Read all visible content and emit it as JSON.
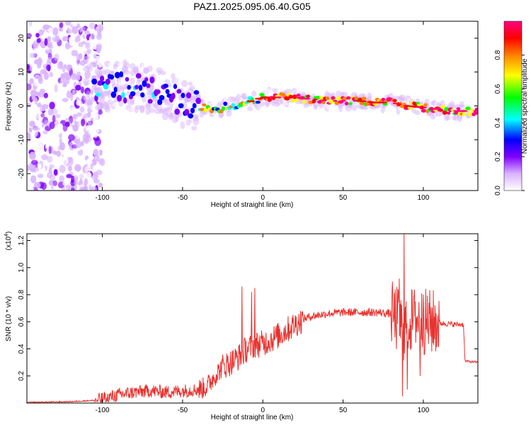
{
  "figure": {
    "title": "PAZ1.2025.095.06.40.G05"
  },
  "chart_data": [
    {
      "type": "heatmap",
      "xlabel": "Height of straight line (km)",
      "ylabel": "Frequency (Hz)",
      "xlim": [
        -147,
        134
      ],
      "ylim": [
        -25,
        25
      ],
      "x_ticks": [
        "-100",
        "-50",
        "0",
        "50",
        "100"
      ],
      "y_ticks": [
        "-20",
        "-10",
        "0",
        "10",
        "20"
      ],
      "colorbar": {
        "label": "Normalized spectral amplitude",
        "range": [
          0,
          1
        ],
        "ticks": [
          "0.0",
          "0.2",
          "0.4",
          "0.6",
          "0.8"
        ],
        "colors": [
          "#ffffff",
          "#d9b3ff",
          "#8000ff",
          "#0000ff",
          "#00ffff",
          "#00ff00",
          "#ffff00",
          "#ff8000",
          "#ff0000",
          "#ff0080"
        ]
      },
      "ridge": {
        "x": [
          -100,
          -90,
          -80,
          -70,
          -60,
          -50,
          -40,
          -30,
          -20,
          -10,
          0,
          10,
          20,
          30,
          40,
          50,
          60,
          70,
          80,
          90,
          100,
          110,
          120,
          134
        ],
        "y": [
          6,
          6,
          5,
          5,
          3,
          1,
          0,
          -1,
          0,
          1,
          2.5,
          2.5,
          2.5,
          2,
          1.5,
          1.5,
          1.5,
          1,
          1,
          0,
          -0.5,
          -1,
          -1.5,
          -1.5
        ]
      },
      "scatter_region": {
        "x_range": [
          -147,
          -100
        ],
        "y_range": [
          -25,
          25
        ]
      }
    },
    {
      "type": "line",
      "xlabel": "Height of straight line (km)",
      "ylabel": "SNR (10 * v/v)",
      "multiplier": "(x10",
      "multiplier_exp": "4",
      "multiplier_close": ")",
      "xlim": [
        -147,
        134
      ],
      "ylim": [
        0,
        1.25
      ],
      "x_ticks": [
        "-100",
        "-50",
        "0",
        "50",
        "100"
      ],
      "y_ticks": [
        "0.2",
        "0.4",
        "0.6",
        "0.8",
        "1.0",
        "1.2"
      ],
      "color": "#e8322e",
      "series": [
        {
          "x": [
            -147,
            -120,
            -105,
            -100,
            -90,
            -80,
            -70,
            -60,
            -50,
            -40,
            -35,
            -30,
            -25,
            -20,
            -15,
            -10,
            -5,
            0,
            5,
            10,
            15,
            20,
            25,
            30,
            40,
            50,
            60,
            70,
            80,
            85,
            88,
            90,
            95,
            100,
            110,
            120,
            125,
            126,
            134
          ],
          "y": [
            0.005,
            0.01,
            0.02,
            0.03,
            0.06,
            0.08,
            0.09,
            0.08,
            0.09,
            0.1,
            0.12,
            0.2,
            0.27,
            0.3,
            0.34,
            0.4,
            0.43,
            0.44,
            0.47,
            0.5,
            0.54,
            0.58,
            0.62,
            0.64,
            0.66,
            0.67,
            0.67,
            0.67,
            0.66,
            0.6,
            0.55,
            0.6,
            0.62,
            0.6,
            0.59,
            0.58,
            0.58,
            0.31,
            0.3
          ]
        }
      ],
      "spikes": [
        {
          "x": -5,
          "y": 0.85
        },
        {
          "x": -7,
          "y": 0.82
        },
        {
          "x": -13,
          "y": 0.86
        },
        {
          "x": 85,
          "y": 0.92
        },
        {
          "x": 87,
          "y": 0.05
        },
        {
          "x": 88,
          "y": 1.25
        },
        {
          "x": 90,
          "y": 0.1
        },
        {
          "x": 95,
          "y": 0.75
        },
        {
          "x": 98,
          "y": 0.2
        },
        {
          "x": 100,
          "y": 0.8
        }
      ]
    }
  ]
}
